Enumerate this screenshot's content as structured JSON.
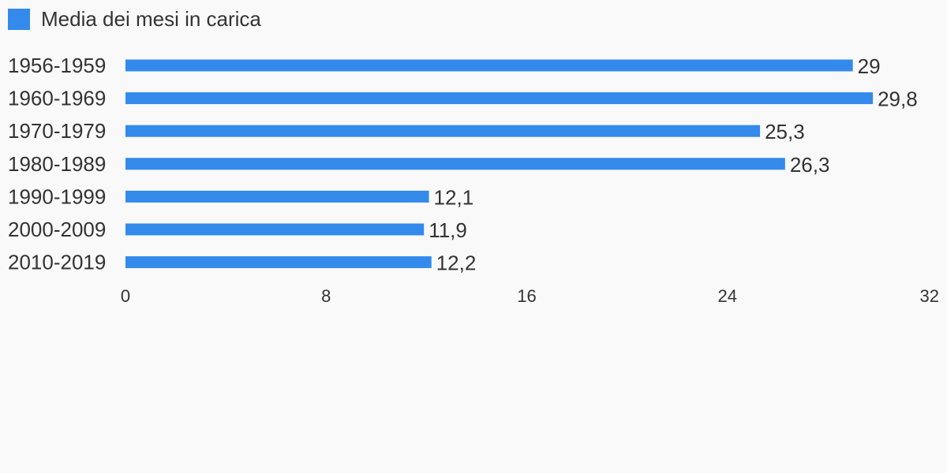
{
  "chart_data": {
    "type": "bar",
    "orientation": "horizontal",
    "categories": [
      "1956-1959",
      "1960-1969",
      "1970-1979",
      "1980-1989",
      "1990-1999",
      "2000-2009",
      "2010-2019"
    ],
    "series": [
      {
        "name": "Media dei mesi in carica",
        "values": [
          29,
          29.8,
          25.3,
          26.3,
          12.1,
          11.9,
          12.2
        ],
        "value_labels": [
          "29",
          "29,8",
          "25,3",
          "26,3",
          "12,1",
          "11,9",
          "12,2"
        ]
      }
    ],
    "xlim": [
      0,
      32
    ],
    "x_ticks": [
      "0",
      "8",
      "16",
      "24",
      "32"
    ],
    "grid": false,
    "legend_position": "top-left",
    "colors": {
      "bar": "#338aeb",
      "text": "#333333",
      "background": "#f9f9f9"
    }
  }
}
